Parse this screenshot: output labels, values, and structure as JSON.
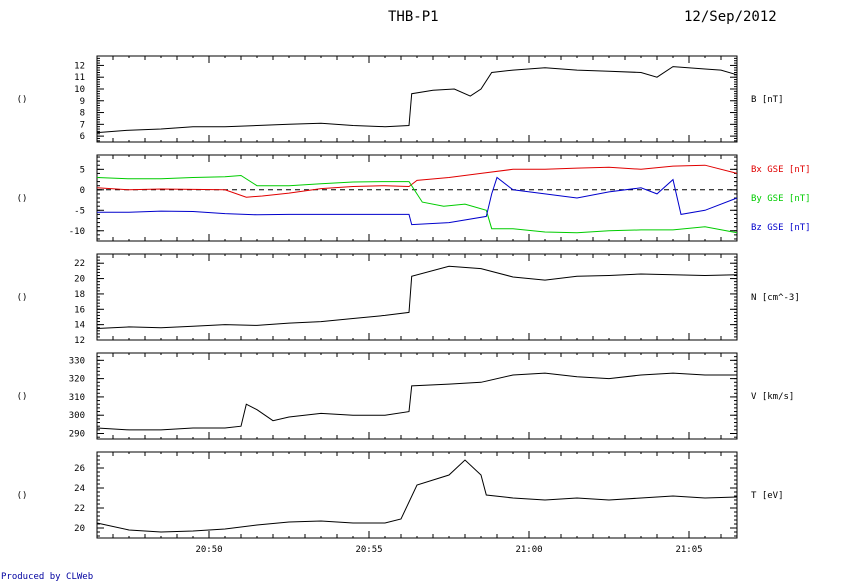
{
  "header": {
    "title": "THB-P1",
    "date": "12/Sep/2012"
  },
  "footer": {
    "credit": "Produced by CLWeb"
  },
  "chart_data": {
    "type": "line",
    "title": "THB-P1",
    "date": "12/Sep/2012",
    "x_time_range": [
      "20:46:30",
      "21:06:30"
    ],
    "x_ticks": [
      "20:50",
      "20:55",
      "21:00",
      "21:05"
    ],
    "grid": false,
    "panels": [
      {
        "id": "B",
        "left_label": "()",
        "ylim": [
          5.5,
          12.8
        ],
        "yticks": [
          "6",
          "7",
          "8",
          "9",
          "10",
          "11",
          "12"
        ],
        "series": [
          {
            "name": "B [nT]",
            "color": "#000000",
            "points": [
              [
                "20:46:30",
                6.3
              ],
              [
                "20:47:30",
                6.5
              ],
              [
                "20:48:30",
                6.6
              ],
              [
                "20:49:30",
                6.8
              ],
              [
                "20:50:30",
                6.8
              ],
              [
                "20:51:30",
                6.9
              ],
              [
                "20:52:30",
                7.0
              ],
              [
                "20:53:30",
                7.1
              ],
              [
                "20:54:30",
                6.9
              ],
              [
                "20:55:30",
                6.8
              ],
              [
                "20:56:15",
                6.9
              ],
              [
                "20:56:20",
                9.6
              ],
              [
                "20:57:00",
                9.9
              ],
              [
                "20:57:40",
                10.0
              ],
              [
                "20:58:10",
                9.4
              ],
              [
                "20:58:30",
                10.0
              ],
              [
                "20:58:50",
                11.4
              ],
              [
                "20:59:30",
                11.6
              ],
              [
                "21:00:30",
                11.8
              ],
              [
                "21:01:30",
                11.6
              ],
              [
                "21:02:30",
                11.5
              ],
              [
                "21:03:30",
                11.4
              ],
              [
                "21:04:00",
                11.0
              ],
              [
                "21:04:30",
                11.9
              ],
              [
                "21:05:30",
                11.7
              ],
              [
                "21:06:00",
                11.6
              ],
              [
                "21:06:30",
                11.2
              ]
            ]
          }
        ]
      },
      {
        "id": "B_GSE",
        "left_label": "()",
        "ylim": [
          -12.5,
          8.5
        ],
        "yticks": [
          "-10",
          "-5",
          "0",
          "5"
        ],
        "zero_line": true,
        "series": [
          {
            "name": "Bx GSE [nT]",
            "color": "#e00000",
            "points": [
              [
                "20:46:30",
                0.5
              ],
              [
                "20:47:30",
                0.0
              ],
              [
                "20:48:30",
                0.2
              ],
              [
                "20:49:30",
                0.1
              ],
              [
                "20:50:30",
                0.0
              ],
              [
                "20:51:10",
                -1.8
              ],
              [
                "20:51:40",
                -1.5
              ],
              [
                "20:52:30",
                -0.8
              ],
              [
                "20:53:30",
                0.3
              ],
              [
                "20:54:30",
                0.8
              ],
              [
                "20:55:30",
                1.0
              ],
              [
                "20:56:15",
                0.8
              ],
              [
                "20:56:30",
                2.3
              ],
              [
                "20:57:30",
                3.0
              ],
              [
                "20:58:30",
                4.0
              ],
              [
                "20:59:30",
                5.0
              ],
              [
                "21:00:30",
                5.0
              ],
              [
                "21:01:30",
                5.3
              ],
              [
                "21:02:30",
                5.5
              ],
              [
                "21:03:30",
                5.0
              ],
              [
                "21:04:30",
                5.8
              ],
              [
                "21:05:30",
                6.0
              ],
              [
                "21:06:30",
                4.0
              ]
            ]
          },
          {
            "name": "By GSE [nT]",
            "color": "#00cc00",
            "points": [
              [
                "20:46:30",
                3.0
              ],
              [
                "20:47:30",
                2.7
              ],
              [
                "20:48:30",
                2.7
              ],
              [
                "20:49:30",
                3.0
              ],
              [
                "20:50:30",
                3.2
              ],
              [
                "20:51:00",
                3.5
              ],
              [
                "20:51:30",
                1.0
              ],
              [
                "20:52:30",
                1.0
              ],
              [
                "20:53:30",
                1.5
              ],
              [
                "20:54:30",
                1.9
              ],
              [
                "20:55:30",
                2.0
              ],
              [
                "20:56:15",
                2.0
              ],
              [
                "20:56:40",
                -3.0
              ],
              [
                "20:57:20",
                -4.0
              ],
              [
                "20:58:00",
                -3.5
              ],
              [
                "20:58:40",
                -5.0
              ],
              [
                "20:58:50",
                -9.5
              ],
              [
                "20:59:30",
                -9.5
              ],
              [
                "21:00:30",
                -10.3
              ],
              [
                "21:01:30",
                -10.5
              ],
              [
                "21:02:30",
                -10.0
              ],
              [
                "21:03:30",
                -9.8
              ],
              [
                "21:04:30",
                -9.8
              ],
              [
                "21:05:30",
                -9.0
              ],
              [
                "21:06:30",
                -10.5
              ]
            ]
          },
          {
            "name": "Bz GSE [nT]",
            "color": "#0000cc",
            "points": [
              [
                "20:46:30",
                -5.5
              ],
              [
                "20:47:30",
                -5.5
              ],
              [
                "20:48:30",
                -5.2
              ],
              [
                "20:49:30",
                -5.3
              ],
              [
                "20:50:30",
                -5.8
              ],
              [
                "20:51:30",
                -6.1
              ],
              [
                "20:52:30",
                -6.0
              ],
              [
                "20:53:30",
                -6.0
              ],
              [
                "20:54:30",
                -6.0
              ],
              [
                "20:55:30",
                -6.0
              ],
              [
                "20:56:15",
                -6.0
              ],
              [
                "20:56:20",
                -8.5
              ],
              [
                "20:57:30",
                -8.0
              ],
              [
                "20:58:40",
                -6.5
              ],
              [
                "20:58:50",
                -1.0
              ],
              [
                "20:59:00",
                3.0
              ],
              [
                "20:59:30",
                0.0
              ],
              [
                "21:00:30",
                -1.0
              ],
              [
                "21:01:30",
                -2.0
              ],
              [
                "21:02:30",
                -0.5
              ],
              [
                "21:03:30",
                0.5
              ],
              [
                "21:04:00",
                -1.0
              ],
              [
                "21:04:30",
                2.5
              ],
              [
                "21:04:45",
                -6.0
              ],
              [
                "21:05:30",
                -5.0
              ],
              [
                "21:06:30",
                -2.0
              ]
            ]
          }
        ]
      },
      {
        "id": "N",
        "left_label": "()",
        "ylim": [
          12.0,
          23.2
        ],
        "yticks": [
          "12",
          "14",
          "16",
          "18",
          "20",
          "22"
        ],
        "series": [
          {
            "name": "N [cm^-3]",
            "color": "#000000",
            "points": [
              [
                "20:46:30",
                13.5
              ],
              [
                "20:47:30",
                13.7
              ],
              [
                "20:48:30",
                13.6
              ],
              [
                "20:49:30",
                13.8
              ],
              [
                "20:50:30",
                14.0
              ],
              [
                "20:51:30",
                13.9
              ],
              [
                "20:52:30",
                14.2
              ],
              [
                "20:53:30",
                14.4
              ],
              [
                "20:54:30",
                14.8
              ],
              [
                "20:55:30",
                15.2
              ],
              [
                "20:56:15",
                15.6
              ],
              [
                "20:56:20",
                20.3
              ],
              [
                "20:57:30",
                21.6
              ],
              [
                "20:58:30",
                21.3
              ],
              [
                "20:59:30",
                20.2
              ],
              [
                "21:00:30",
                19.8
              ],
              [
                "21:01:30",
                20.3
              ],
              [
                "21:02:30",
                20.4
              ],
              [
                "21:03:30",
                20.6
              ],
              [
                "21:04:30",
                20.5
              ],
              [
                "21:05:30",
                20.4
              ],
              [
                "21:06:30",
                20.5
              ]
            ]
          }
        ]
      },
      {
        "id": "V",
        "left_label": "()",
        "ylim": [
          287,
          334
        ],
        "yticks": [
          "290",
          "300",
          "310",
          "320",
          "330"
        ],
        "series": [
          {
            "name": "V [km/s]",
            "color": "#000000",
            "points": [
              [
                "20:46:30",
                293
              ],
              [
                "20:47:30",
                292
              ],
              [
                "20:48:30",
                292
              ],
              [
                "20:49:30",
                293
              ],
              [
                "20:50:30",
                293
              ],
              [
                "20:51:00",
                294
              ],
              [
                "20:51:10",
                306
              ],
              [
                "20:51:30",
                303
              ],
              [
                "20:52:00",
                297
              ],
              [
                "20:52:30",
                299
              ],
              [
                "20:53:30",
                301
              ],
              [
                "20:54:30",
                300
              ],
              [
                "20:55:30",
                300
              ],
              [
                "20:56:15",
                302
              ],
              [
                "20:56:20",
                316
              ],
              [
                "20:57:30",
                317
              ],
              [
                "20:58:30",
                318
              ],
              [
                "20:59:30",
                322
              ],
              [
                "21:00:30",
                323
              ],
              [
                "21:01:30",
                321
              ],
              [
                "21:02:30",
                320
              ],
              [
                "21:03:30",
                322
              ],
              [
                "21:04:30",
                323
              ],
              [
                "21:05:30",
                322
              ],
              [
                "21:06:30",
                322
              ]
            ]
          }
        ]
      },
      {
        "id": "T",
        "left_label": "()",
        "ylim": [
          19.0,
          27.6
        ],
        "yticks": [
          "20",
          "22",
          "24",
          "26"
        ],
        "series": [
          {
            "name": "T [eV]",
            "color": "#000000",
            "points": [
              [
                "20:46:30",
                20.5
              ],
              [
                "20:47:30",
                19.8
              ],
              [
                "20:48:30",
                19.6
              ],
              [
                "20:49:30",
                19.7
              ],
              [
                "20:50:30",
                19.9
              ],
              [
                "20:51:30",
                20.3
              ],
              [
                "20:52:30",
                20.6
              ],
              [
                "20:53:30",
                20.7
              ],
              [
                "20:54:30",
                20.5
              ],
              [
                "20:55:30",
                20.5
              ],
              [
                "20:56:00",
                20.9
              ],
              [
                "20:56:30",
                24.3
              ],
              [
                "20:57:30",
                25.3
              ],
              [
                "20:58:00",
                26.8
              ],
              [
                "20:58:30",
                25.3
              ],
              [
                "20:58:40",
                23.3
              ],
              [
                "20:59:30",
                23.0
              ],
              [
                "21:00:30",
                22.8
              ],
              [
                "21:01:30",
                23.0
              ],
              [
                "21:02:30",
                22.8
              ],
              [
                "21:03:30",
                23.0
              ],
              [
                "21:04:30",
                23.2
              ],
              [
                "21:05:30",
                23.0
              ],
              [
                "21:06:30",
                23.1
              ]
            ]
          }
        ]
      }
    ]
  }
}
